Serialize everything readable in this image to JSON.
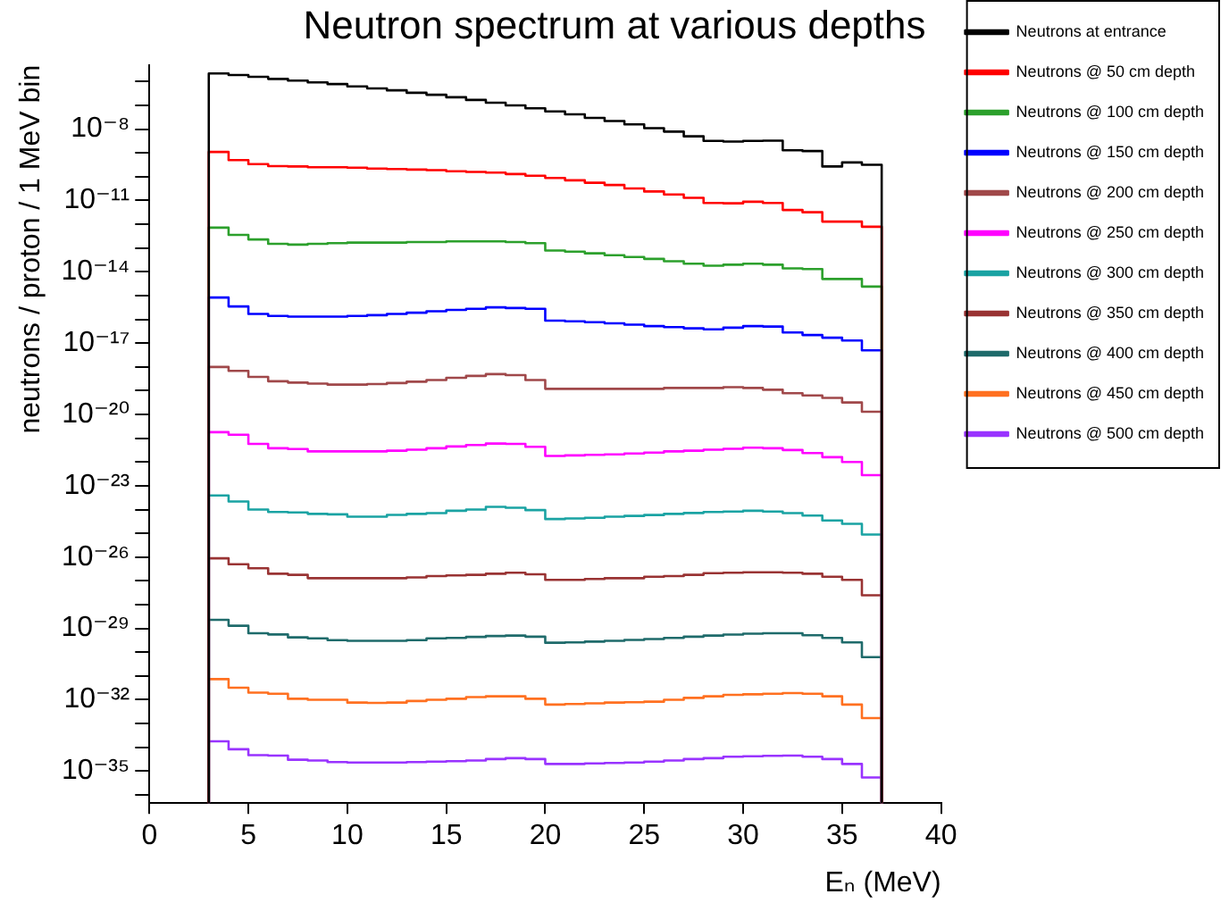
{
  "chart_data": {
    "type": "histogram",
    "title": "Neutron spectrum at various depths",
    "xlabel": "Eₙ (MeV)",
    "ylabel": "neutrons / proton / 1 MeV bin",
    "bins": [
      3,
      4,
      5,
      6,
      7,
      8,
      9,
      10,
      11,
      12,
      13,
      14,
      15,
      16,
      17,
      18,
      19,
      20,
      21,
      22,
      23,
      24,
      25,
      26,
      27,
      28,
      29,
      30,
      31,
      32,
      33,
      34,
      35,
      36,
      37
    ],
    "xlim": [
      0,
      40
    ],
    "xticks": [
      0,
      5,
      10,
      15,
      20,
      25,
      30,
      35,
      40
    ],
    "ylim": [
      4.5e-37,
      5e-06
    ],
    "log": true,
    "grid": false,
    "legend": "right",
    "yticks": [
      {
        "value": 1e-36,
        "label": null
      },
      {
        "value": 1e-35,
        "label": "10⁻³⁵"
      },
      {
        "value": 1e-34,
        "label": null
      },
      {
        "value": 1e-33,
        "label": null
      },
      {
        "value": 1e-32,
        "label": "10⁻³²"
      },
      {
        "value": 1e-31,
        "label": null
      },
      {
        "value": 1e-30,
        "label": null
      },
      {
        "value": 1e-29,
        "label": "10⁻²⁹"
      },
      {
        "value": 1e-28,
        "label": null
      },
      {
        "value": 1e-27,
        "label": null
      },
      {
        "value": 1e-26,
        "label": "10⁻²⁶"
      },
      {
        "value": 1e-25,
        "label": null
      },
      {
        "value": 1e-24,
        "label": null
      },
      {
        "value": 1e-23,
        "label": "10⁻²³"
      },
      {
        "value": 1e-22,
        "label": null
      },
      {
        "value": 1e-21,
        "label": null
      },
      {
        "value": 1e-20,
        "label": "10⁻²⁰"
      },
      {
        "value": 1e-19,
        "label": null
      },
      {
        "value": 1e-18,
        "label": null
      },
      {
        "value": 1e-17,
        "label": "10⁻¹⁷"
      },
      {
        "value": 1e-16,
        "label": null
      },
      {
        "value": 1e-15,
        "label": null
      },
      {
        "value": 1e-14,
        "label": "10⁻¹⁴"
      },
      {
        "value": 1e-13,
        "label": null
      },
      {
        "value": 1e-12,
        "label": null
      },
      {
        "value": 1e-11,
        "label": "10⁻¹¹"
      },
      {
        "value": 1e-10,
        "label": null
      },
      {
        "value": 1e-09,
        "label": null
      },
      {
        "value": 1e-08,
        "label": "10⁻⁸"
      },
      {
        "value": 1e-07,
        "label": null
      },
      {
        "value": 1e-06,
        "label": null
      }
    ],
    "series": [
      {
        "name": "Neutrons at entrance",
        "color": "#000000",
        "values": [
          2.2e-06,
          1.9e-06,
          1.6e-06,
          1.3e-06,
          1.1e-06,
          9.3e-07,
          7.9e-07,
          6.3e-07,
          5.2e-07,
          4.3e-07,
          3.4e-07,
          2.8e-07,
          2.2e-07,
          1.7e-07,
          1.3e-07,
          1e-07,
          7.6e-08,
          5.6e-08,
          4.2e-08,
          3e-08,
          2.2e-08,
          1.6e-08,
          1.1e-08,
          7.9e-09,
          5e-09,
          3.2e-09,
          3e-09,
          3.2e-09,
          3.3e-09,
          1.3e-09,
          1.2e-09,
          2.7e-10,
          4e-10,
          3.2e-10
        ]
      },
      {
        "name": "Neutrons @ 50 cm depth",
        "color": "#ff0000",
        "values": [
          1.1e-09,
          5e-10,
          3.4e-10,
          2.8e-10,
          2.7e-10,
          2.5e-10,
          2.5e-10,
          2.4e-10,
          2.2e-10,
          2.1e-10,
          2e-10,
          1.9e-10,
          1.7e-10,
          1.6e-10,
          1.5e-10,
          1.3e-10,
          1.1e-10,
          8.9e-11,
          7.1e-11,
          5.6e-11,
          4.5e-11,
          3.2e-11,
          2.4e-11,
          1.8e-11,
          1.3e-11,
          7.9e-12,
          7.6e-12,
          8.9e-12,
          7.9e-12,
          4e-12,
          3.2e-12,
          1.3e-12,
          1.3e-12,
          7.9e-13
        ]
      },
      {
        "name": "Neutrons @ 100 cm depth",
        "color": "#2ca02c",
        "values": [
          7.2e-13,
          3.6e-13,
          2.3e-13,
          1.5e-13,
          1.4e-13,
          1.5e-13,
          1.6e-13,
          1.7e-13,
          1.7e-13,
          1.7e-13,
          1.8e-13,
          1.8e-13,
          1.9e-13,
          1.9e-13,
          1.9e-13,
          1.8e-13,
          1.6e-13,
          7.9e-14,
          7.1e-14,
          6e-14,
          5e-14,
          4.2e-14,
          3.5e-14,
          2.8e-14,
          2.2e-14,
          1.8e-14,
          2e-14,
          2.2e-14,
          2e-14,
          1.4e-14,
          1.3e-14,
          5e-15,
          5e-15,
          2.4e-15
        ]
      },
      {
        "name": "Neutrons @ 150 cm depth",
        "color": "#0000ff",
        "values": [
          8.3e-16,
          3.5e-16,
          1.7e-16,
          1.4e-16,
          1.3e-16,
          1.3e-16,
          1.3e-16,
          1.4e-16,
          1.5e-16,
          1.7e-16,
          1.9e-16,
          2.2e-16,
          2.5e-16,
          2.8e-16,
          3.2e-16,
          3e-16,
          2.8e-16,
          8.9e-17,
          8.3e-17,
          7.6e-17,
          6.8e-17,
          6e-17,
          5.2e-17,
          4.7e-17,
          4.2e-17,
          3.8e-17,
          4.5e-17,
          5.2e-17,
          5e-17,
          2.8e-17,
          2.2e-17,
          1.7e-17,
          1.3e-17,
          5e-18
        ]
      },
      {
        "name": "Neutrons @ 200 cm depth",
        "color": "#a0484a",
        "values": [
          1e-18,
          6.8e-19,
          3.8e-19,
          2.5e-19,
          2.2e-19,
          2e-19,
          1.8e-19,
          1.8e-19,
          1.9e-19,
          2.1e-19,
          2.4e-19,
          2.8e-19,
          3.5e-19,
          4.2e-19,
          5e-19,
          4.5e-19,
          2.8e-19,
          1.2e-19,
          1.2e-19,
          1.2e-19,
          1.2e-19,
          1.2e-19,
          1.2e-19,
          1.3e-19,
          1.3e-19,
          1.3e-19,
          1.4e-19,
          1.3e-19,
          1.1e-19,
          7.9e-20,
          6.3e-20,
          5e-20,
          3.2e-20,
          1.3e-20
        ]
      },
      {
        "name": "Neutrons @ 250 cm depth",
        "color": "#ff00ff",
        "values": [
          1.8e-21,
          1.4e-21,
          5.8e-22,
          3.8e-22,
          3.5e-22,
          2.8e-22,
          2.8e-22,
          2.8e-22,
          2.8e-22,
          3e-22,
          3.3e-22,
          3.8e-22,
          4.5e-22,
          5.2e-22,
          6e-22,
          5.8e-22,
          4.4e-22,
          1.8e-22,
          1.9e-22,
          2e-22,
          2.1e-22,
          2.3e-22,
          2.5e-22,
          2.8e-22,
          3e-22,
          3.3e-22,
          3.6e-22,
          4e-22,
          3.8e-22,
          3.2e-22,
          2.4e-22,
          1.6e-22,
          1e-22,
          2.8e-23
        ]
      },
      {
        "name": "Neutrons @ 300 cm depth",
        "color": "#1aa3a3",
        "values": [
          3.9e-24,
          2.2e-24,
          1e-24,
          7.9e-25,
          7.6e-25,
          6.6e-25,
          6.3e-25,
          5e-25,
          5e-25,
          6e-25,
          6.6e-25,
          7.1e-25,
          8.9e-25,
          1e-24,
          1.3e-24,
          1.2e-24,
          9.5e-25,
          4e-25,
          4.2e-25,
          4.5e-25,
          5e-25,
          5.4e-25,
          5.9e-25,
          6.6e-25,
          7.2e-25,
          7.9e-25,
          8.3e-25,
          8.9e-25,
          8.3e-25,
          7.1e-25,
          5.6e-25,
          3.5e-25,
          2.5e-25,
          8.9e-26
        ]
      },
      {
        "name": "Neutrons @ 350 cm depth",
        "color": "#993333",
        "values": [
          8.9e-27,
          5e-27,
          3.4e-27,
          2e-27,
          1.8e-27,
          1.3e-27,
          1.3e-27,
          1.3e-27,
          1.3e-27,
          1.3e-27,
          1.4e-27,
          1.6e-27,
          1.7e-27,
          1.8e-27,
          2e-27,
          2.2e-27,
          1.9e-27,
          1.1e-27,
          1.1e-27,
          1.2e-27,
          1.3e-27,
          1.3e-27,
          1.5e-27,
          1.6e-27,
          1.8e-27,
          2.1e-27,
          2.2e-27,
          2.3e-27,
          2.3e-27,
          2.2e-27,
          2e-27,
          1.5e-27,
          1.1e-27,
          2.5e-28
        ]
      },
      {
        "name": "Neutrons @ 400 cm depth",
        "color": "#1f6b6b",
        "values": [
          2.3e-29,
          1.3e-29,
          6.3e-30,
          5.6e-30,
          4.2e-30,
          3.8e-30,
          3.2e-30,
          3e-30,
          3e-30,
          3e-30,
          3.2e-30,
          3.8e-30,
          4e-30,
          4.4e-30,
          4.8e-30,
          5e-30,
          4.5e-30,
          2.5e-30,
          2.6e-30,
          2.8e-30,
          3e-30,
          3.3e-30,
          3.6e-30,
          4e-30,
          4.5e-30,
          5e-30,
          5.5e-30,
          6e-30,
          6.3e-30,
          6.3e-30,
          5.2e-30,
          4e-30,
          2.6e-30,
          6.2e-31
        ]
      },
      {
        "name": "Neutrons @ 450 cm depth",
        "color": "#ff7020",
        "values": [
          7.4e-32,
          3.2e-32,
          2e-32,
          1.8e-32,
          1.1e-32,
          1e-32,
          1e-32,
          7.6e-33,
          7.4e-33,
          7.6e-33,
          8.9e-33,
          1e-32,
          1.1e-32,
          1.3e-32,
          1.4e-32,
          1.4e-32,
          1.1e-32,
          6.3e-33,
          6.6e-33,
          7.1e-33,
          7.6e-33,
          7.9e-33,
          8.3e-33,
          1e-32,
          1.2e-32,
          1.4e-32,
          1.6e-32,
          1.7e-32,
          1.8e-32,
          1.9e-32,
          1.8e-32,
          1.4e-32,
          6.3e-33,
          1.7e-33
        ]
      },
      {
        "name": "Neutrons @ 500 cm depth",
        "color": "#9933ff",
        "values": [
          1.8e-34,
          8.3e-35,
          4.7e-35,
          4.5e-35,
          3e-35,
          2.8e-35,
          2.4e-35,
          2.3e-35,
          2.3e-35,
          2.3e-35,
          2.4e-35,
          2.5e-35,
          2.6e-35,
          2.8e-35,
          3.2e-35,
          3.5e-35,
          3.2e-35,
          2e-35,
          2e-35,
          2.1e-35,
          2.2e-35,
          2.3e-35,
          2.5e-35,
          2.8e-35,
          3.2e-35,
          3.5e-35,
          4e-35,
          4.2e-35,
          4.4e-35,
          4.5e-35,
          4e-35,
          3.2e-35,
          2e-35,
          5.4e-36
        ]
      }
    ]
  }
}
